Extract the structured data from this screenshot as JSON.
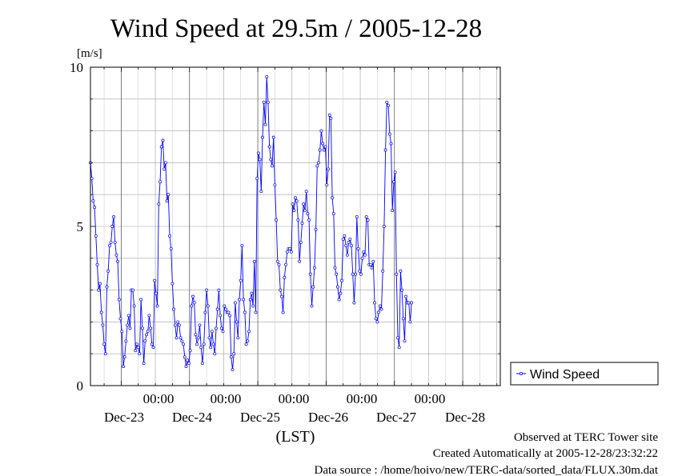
{
  "chart_data": {
    "type": "line",
    "title": "Wind Speed at 29.5m / 2005-12-28",
    "ylabel": "[m/s]",
    "xlabel": "(LST)",
    "ylim": [
      0,
      10
    ],
    "y_ticks": [
      "0",
      "5",
      "10"
    ],
    "x_range_days": [
      22.55,
      28.55
    ],
    "x_ticks": [
      {
        "day": 23.0,
        "time_label": "00:00",
        "date_label": "Dec-23"
      },
      {
        "day": 24.0,
        "time_label": "00:00",
        "date_label": "Dec-24"
      },
      {
        "day": 25.0,
        "time_label": "00:00",
        "date_label": "Dec-25"
      },
      {
        "day": 26.0,
        "time_label": "00:00",
        "date_label": "Dec-26"
      },
      {
        "day": 27.0,
        "time_label": "00:00",
        "date_label": "Dec-27"
      },
      {
        "day": 28.0,
        "time_label": "00:00",
        "date_label": "Dec-28"
      }
    ],
    "grid": true,
    "legend_position": "right",
    "series": [
      {
        "name": "Wind Speed",
        "color": "#0000ff",
        "points": [
          [
            22.55,
            7.0
          ],
          [
            22.57,
            6.5
          ],
          [
            22.59,
            5.8
          ],
          [
            22.61,
            5.6
          ],
          [
            22.63,
            4.7
          ],
          [
            22.65,
            3.8
          ],
          [
            22.67,
            3.0
          ],
          [
            22.69,
            3.2
          ],
          [
            22.71,
            2.3
          ],
          [
            22.73,
            1.9
          ],
          [
            22.75,
            1.3
          ],
          [
            22.77,
            1.0
          ],
          [
            22.79,
            3.1
          ],
          [
            22.81,
            3.6
          ],
          [
            22.83,
            4.4
          ],
          [
            22.85,
            4.5
          ],
          [
            22.87,
            5.0
          ],
          [
            22.89,
            5.3
          ],
          [
            22.91,
            4.5
          ],
          [
            22.93,
            4.1
          ],
          [
            22.95,
            3.9
          ],
          [
            22.97,
            2.7
          ],
          [
            22.99,
            2.1
          ],
          [
            23.01,
            1.7
          ],
          [
            23.03,
            0.6
          ],
          [
            23.05,
            0.9
          ],
          [
            23.07,
            1.4
          ],
          [
            23.09,
            1.9
          ],
          [
            23.11,
            2.2
          ],
          [
            23.13,
            1.8
          ],
          [
            23.15,
            3.0
          ],
          [
            23.17,
            3.0
          ],
          [
            23.19,
            2.5
          ],
          [
            23.21,
            1.1
          ],
          [
            23.23,
            1.3
          ],
          [
            23.25,
            1.2
          ],
          [
            23.27,
            1.0
          ],
          [
            23.29,
            2.7
          ],
          [
            23.31,
            1.8
          ],
          [
            23.33,
            0.7
          ],
          [
            23.35,
            1.4
          ],
          [
            23.37,
            1.6
          ],
          [
            23.39,
            1.7
          ],
          [
            23.41,
            2.2
          ],
          [
            23.43,
            1.8
          ],
          [
            23.45,
            1.3
          ],
          [
            23.47,
            1.2
          ],
          [
            23.49,
            3.3
          ],
          [
            23.51,
            2.9
          ],
          [
            23.53,
            2.5
          ],
          [
            23.55,
            5.7
          ],
          [
            23.57,
            6.4
          ],
          [
            23.59,
            7.5
          ],
          [
            23.61,
            7.7
          ],
          [
            23.63,
            6.8
          ],
          [
            23.65,
            7.0
          ],
          [
            23.67,
            5.8
          ],
          [
            23.69,
            6.0
          ],
          [
            23.71,
            4.7
          ],
          [
            23.73,
            4.3
          ],
          [
            23.75,
            3.2
          ],
          [
            23.77,
            2.4
          ],
          [
            23.79,
            1.9
          ],
          [
            23.81,
            1.5
          ],
          [
            23.83,
            2.0
          ],
          [
            23.85,
            1.9
          ],
          [
            23.87,
            1.5
          ],
          [
            23.89,
            1.4
          ],
          [
            23.91,
            1.3
          ],
          [
            23.93,
            0.9
          ],
          [
            23.95,
            0.6
          ],
          [
            23.97,
            0.8
          ],
          [
            23.99,
            0.7
          ],
          [
            24.01,
            1.1
          ],
          [
            24.03,
            2.5
          ],
          [
            24.05,
            2.8
          ],
          [
            24.07,
            2.6
          ],
          [
            24.09,
            1.6
          ],
          [
            24.11,
            1.3
          ],
          [
            24.13,
            1.5
          ],
          [
            24.15,
            1.9
          ],
          [
            24.17,
            1.2
          ],
          [
            24.19,
            0.7
          ],
          [
            24.21,
            1.3
          ],
          [
            24.23,
            2.3
          ],
          [
            24.25,
            3.0
          ],
          [
            24.27,
            2.5
          ],
          [
            24.29,
            1.5
          ],
          [
            24.31,
            1.2
          ],
          [
            24.33,
            1.7
          ],
          [
            24.35,
            1.3
          ],
          [
            24.37,
            1.0
          ],
          [
            24.39,
            1.8
          ],
          [
            24.41,
            2.4
          ],
          [
            24.43,
            3.0
          ],
          [
            24.45,
            2.2
          ],
          [
            24.47,
            1.8
          ],
          [
            24.49,
            1.7
          ],
          [
            24.51,
            2.5
          ],
          [
            24.53,
            2.4
          ],
          [
            24.55,
            2.3
          ],
          [
            24.57,
            2.3
          ],
          [
            24.59,
            2.2
          ],
          [
            24.61,
            0.9
          ],
          [
            24.63,
            0.5
          ],
          [
            24.65,
            1.0
          ],
          [
            24.67,
            2.6
          ],
          [
            24.69,
            2.0
          ],
          [
            24.71,
            1.5
          ],
          [
            24.73,
            2.7
          ],
          [
            24.75,
            3.3
          ],
          [
            24.77,
            4.4
          ],
          [
            24.79,
            2.7
          ],
          [
            24.81,
            2.3
          ],
          [
            24.83,
            1.3
          ],
          [
            24.85,
            1.4
          ],
          [
            24.87,
            1.7
          ],
          [
            24.89,
            2.7
          ],
          [
            24.91,
            2.9
          ],
          [
            24.93,
            2.5
          ],
          [
            24.95,
            3.9
          ],
          [
            24.97,
            2.3
          ],
          [
            24.99,
            6.5
          ],
          [
            25.01,
            7.3
          ],
          [
            25.03,
            7.1
          ],
          [
            25.05,
            6.1
          ],
          [
            25.07,
            7.8
          ],
          [
            25.09,
            8.9
          ],
          [
            25.11,
            8.2
          ],
          [
            25.13,
            9.7
          ],
          [
            25.15,
            8.9
          ],
          [
            25.17,
            7.5
          ],
          [
            25.19,
            7.1
          ],
          [
            25.21,
            6.9
          ],
          [
            25.23,
            7.8
          ],
          [
            25.25,
            6.3
          ],
          [
            25.27,
            5.2
          ],
          [
            25.29,
            3.9
          ],
          [
            25.31,
            3.8
          ],
          [
            25.33,
            3.0
          ],
          [
            25.35,
            2.8
          ],
          [
            25.37,
            2.3
          ],
          [
            25.39,
            3.4
          ],
          [
            25.41,
            3.8
          ],
          [
            25.43,
            4.2
          ],
          [
            25.45,
            4.3
          ],
          [
            25.47,
            4.3
          ],
          [
            25.49,
            4.2
          ],
          [
            25.51,
            5.7
          ],
          [
            25.53,
            5.5
          ],
          [
            25.55,
            5.9
          ],
          [
            25.57,
            5.8
          ],
          [
            25.59,
            5.2
          ],
          [
            25.61,
            3.9
          ],
          [
            25.63,
            4.5
          ],
          [
            25.65,
            5.1
          ],
          [
            25.67,
            5.7
          ],
          [
            25.69,
            5.5
          ],
          [
            25.71,
            6.1
          ],
          [
            25.73,
            5.4
          ],
          [
            25.75,
            5.2
          ],
          [
            25.77,
            3.5
          ],
          [
            25.79,
            2.5
          ],
          [
            25.81,
            3.1
          ],
          [
            25.83,
            3.7
          ],
          [
            25.85,
            4.9
          ],
          [
            25.87,
            6.9
          ],
          [
            25.89,
            7.0
          ],
          [
            25.91,
            7.4
          ],
          [
            25.93,
            8.0
          ],
          [
            25.95,
            7.6
          ],
          [
            25.97,
            7.4
          ],
          [
            25.99,
            7.5
          ],
          [
            26.01,
            6.3
          ],
          [
            26.03,
            6.8
          ],
          [
            26.05,
            8.5
          ],
          [
            26.07,
            8.4
          ],
          [
            26.09,
            5.9
          ],
          [
            26.11,
            5.4
          ],
          [
            26.13,
            3.7
          ],
          [
            26.15,
            3.5
          ],
          [
            26.17,
            3.1
          ],
          [
            26.19,
            2.7
          ],
          [
            26.21,
            2.9
          ],
          [
            26.23,
            3.3
          ],
          [
            26.25,
            4.6
          ],
          [
            26.27,
            4.7
          ],
          [
            26.29,
            4.4
          ],
          [
            26.31,
            4.1
          ],
          [
            26.33,
            4.5
          ],
          [
            26.35,
            4.6
          ],
          [
            26.37,
            4.4
          ],
          [
            26.39,
            3.5
          ],
          [
            26.41,
            2.6
          ],
          [
            26.43,
            3.5
          ],
          [
            26.45,
            5.3
          ],
          [
            26.47,
            4.3
          ],
          [
            26.49,
            3.6
          ],
          [
            26.51,
            3.5
          ],
          [
            26.53,
            4.0
          ],
          [
            26.55,
            4.2
          ],
          [
            26.57,
            4.1
          ],
          [
            26.59,
            5.3
          ],
          [
            26.61,
            5.2
          ],
          [
            26.63,
            3.8
          ],
          [
            26.65,
            3.8
          ],
          [
            26.67,
            3.7
          ],
          [
            26.69,
            3.9
          ],
          [
            26.71,
            2.6
          ],
          [
            26.73,
            2.1
          ],
          [
            26.75,
            2.0
          ],
          [
            26.77,
            2.3
          ],
          [
            26.79,
            2.5
          ],
          [
            26.81,
            2.4
          ],
          [
            26.83,
            3.6
          ],
          [
            26.85,
            5.0
          ],
          [
            26.87,
            7.4
          ],
          [
            26.89,
            8.9
          ],
          [
            26.91,
            8.8
          ],
          [
            26.93,
            7.9
          ],
          [
            26.95,
            7.6
          ],
          [
            26.97,
            5.5
          ],
          [
            26.99,
            6.4
          ],
          [
            27.01,
            6.7
          ],
          [
            27.03,
            3.5
          ],
          [
            27.05,
            1.5
          ],
          [
            27.07,
            1.2
          ],
          [
            27.09,
            3.6
          ],
          [
            27.11,
            3.0
          ],
          [
            27.13,
            2.1
          ],
          [
            27.15,
            1.4
          ],
          [
            27.17,
            2.8
          ],
          [
            27.19,
            2.6
          ],
          [
            27.21,
            2.6
          ],
          [
            27.23,
            2.0
          ],
          [
            27.25,
            2.6
          ]
        ]
      }
    ]
  },
  "legend": {
    "label": "Wind Speed"
  },
  "footer": {
    "observed": "Observed at TERC Tower site",
    "created": "Created Automatically at 2005-12-28/23:32:22",
    "source": "Data source : /home/hoivo/new/TERC-data/sorted_data/FLUX.30m.dat"
  }
}
